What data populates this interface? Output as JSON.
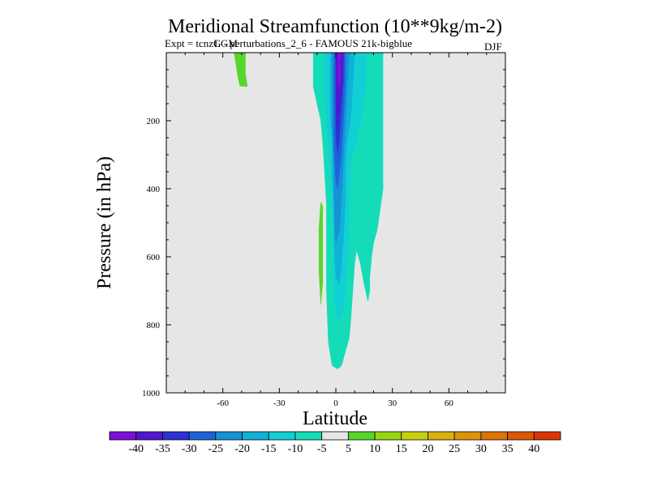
{
  "chart_data": {
    "type": "contour",
    "title": "Meridional Streamfunction (10**9kg/m-2)",
    "subtitle_left": "Expt = tcnzG - perturbations_2_6 - FAMOUS 21k-bigblue",
    "subtitle_overlap": "LGM",
    "season": "DJF",
    "xlabel": "Latitude",
    "ylabel": "Pressure (in hPa)",
    "xlim": [
      -90,
      90
    ],
    "ylim": [
      1000,
      0
    ],
    "xticks": [
      -60,
      -30,
      0,
      30,
      60
    ],
    "yticks": [
      200,
      400,
      600,
      800,
      1000
    ],
    "background_color": "#e6e6e6",
    "contour_levels": [
      -40,
      -35,
      -30,
      -25,
      -20,
      -15,
      -10,
      -5,
      5,
      10,
      15,
      20,
      25,
      30,
      35,
      40
    ],
    "colorbar_colors": [
      "#7b10d8",
      "#5016d0",
      "#2a32d6",
      "#1f62d8",
      "#1592d6",
      "#10b2d8",
      "#12cfd6",
      "#14dcb8",
      "#e6e6e6",
      "#56d62a",
      "#96d610",
      "#c8d00e",
      "#dcb00c",
      "#dc920a",
      "#dc7408",
      "#dc5606",
      "#dc3404"
    ],
    "regions": [
      {
        "name": "negative-broad",
        "level": -5,
        "color": "#14dcb8",
        "polygon": [
          [
            -12,
            0
          ],
          [
            8,
            0
          ],
          [
            20,
            0
          ],
          [
            25,
            0
          ],
          [
            25,
            200
          ],
          [
            25,
            400
          ],
          [
            22,
            520
          ],
          [
            20,
            560
          ],
          [
            19,
            600
          ],
          [
            18,
            660
          ],
          [
            18,
            700
          ],
          [
            17,
            730
          ],
          [
            15,
            680
          ],
          [
            13,
            620
          ],
          [
            11,
            580
          ],
          [
            10,
            620
          ],
          [
            9,
            700
          ],
          [
            8,
            780
          ],
          [
            7,
            840
          ],
          [
            5,
            880
          ],
          [
            3,
            920
          ],
          [
            1,
            930
          ],
          [
            -2,
            920
          ],
          [
            -4,
            850
          ],
          [
            -5,
            700
          ],
          [
            -5,
            550
          ],
          [
            -5,
            450
          ],
          [
            -6,
            350
          ],
          [
            -7,
            260
          ],
          [
            -8,
            200
          ],
          [
            -10,
            150
          ],
          [
            -12,
            100
          ]
        ]
      },
      {
        "name": "negative-10",
        "level": -10,
        "color": "#12cfd6",
        "polygon": [
          [
            -6,
            0
          ],
          [
            16,
            0
          ],
          [
            16,
            100
          ],
          [
            14,
            180
          ],
          [
            11,
            260
          ],
          [
            8,
            320
          ],
          [
            7,
            420
          ],
          [
            7,
            520
          ],
          [
            6,
            620
          ],
          [
            5,
            700
          ],
          [
            4,
            760
          ],
          [
            2,
            790
          ],
          [
            0,
            770
          ],
          [
            -1,
            700
          ],
          [
            -1,
            550
          ],
          [
            -2,
            450
          ],
          [
            -3,
            350
          ],
          [
            -4,
            260
          ],
          [
            -5,
            200
          ],
          [
            -6,
            120
          ]
        ]
      },
      {
        "name": "negative-15",
        "level": -15,
        "color": "#10b2d8",
        "polygon": [
          [
            -3,
            0
          ],
          [
            10,
            0
          ],
          [
            9,
            100
          ],
          [
            8,
            180
          ],
          [
            6,
            260
          ],
          [
            5,
            340
          ],
          [
            5,
            440
          ],
          [
            4,
            540
          ],
          [
            3,
            620
          ],
          [
            2,
            680
          ],
          [
            0,
            660
          ],
          [
            -1,
            560
          ],
          [
            -1,
            440
          ],
          [
            -2,
            340
          ],
          [
            -2,
            260
          ],
          [
            -3,
            180
          ],
          [
            -3,
            80
          ]
        ]
      },
      {
        "name": "negative-20",
        "level": -20,
        "color": "#1592d6",
        "polygon": [
          [
            -2,
            0
          ],
          [
            7,
            0
          ],
          [
            6,
            120
          ],
          [
            5,
            220
          ],
          [
            4,
            320
          ],
          [
            3,
            420
          ],
          [
            2,
            520
          ],
          [
            0,
            560
          ],
          [
            -1,
            460
          ],
          [
            -1,
            340
          ],
          [
            -2,
            220
          ],
          [
            -2,
            100
          ]
        ]
      },
      {
        "name": "negative-25",
        "level": -25,
        "color": "#1f62d8",
        "polygon": [
          [
            -1,
            0
          ],
          [
            5,
            0
          ],
          [
            5,
            100
          ],
          [
            4,
            200
          ],
          [
            3,
            300
          ],
          [
            1,
            400
          ],
          [
            0,
            380
          ],
          [
            -1,
            280
          ],
          [
            -1,
            160
          ]
        ]
      },
      {
        "name": "negative-30",
        "level": -30,
        "color": "#2a32d6",
        "polygon": [
          [
            0,
            0
          ],
          [
            4,
            0
          ],
          [
            4,
            80
          ],
          [
            3,
            160
          ],
          [
            2,
            250
          ],
          [
            1,
            300
          ],
          [
            0,
            240
          ],
          [
            0,
            120
          ]
        ]
      },
      {
        "name": "negative-35",
        "level": -35,
        "color": "#5016d0",
        "polygon": [
          [
            0,
            0
          ],
          [
            4,
            0
          ],
          [
            3,
            80
          ],
          [
            2,
            160
          ],
          [
            1,
            220
          ],
          [
            0,
            150
          ],
          [
            0,
            60
          ]
        ]
      },
      {
        "name": "negative-40",
        "level": -40,
        "color": "#7b10d8",
        "polygon": [
          [
            1,
            0
          ],
          [
            3,
            0
          ],
          [
            3,
            50
          ],
          [
            2,
            110
          ],
          [
            1,
            90
          ]
        ]
      },
      {
        "name": "positive-nh-pole-cell",
        "level": 5,
        "color": "#56d62a",
        "polygon": [
          [
            -54,
            0
          ],
          [
            -48,
            0
          ],
          [
            -48,
            60
          ],
          [
            -47,
            100
          ],
          [
            -51,
            98
          ],
          [
            -52,
            70
          ]
        ]
      },
      {
        "name": "positive-low-cell",
        "level": 5,
        "color": "#56d62a",
        "polygon": [
          [
            -8,
            440
          ],
          [
            -7,
            450
          ],
          [
            -7,
            560
          ],
          [
            -7,
            680
          ],
          [
            -8,
            740
          ],
          [
            -9,
            640
          ],
          [
            -9,
            520
          ]
        ]
      }
    ]
  }
}
